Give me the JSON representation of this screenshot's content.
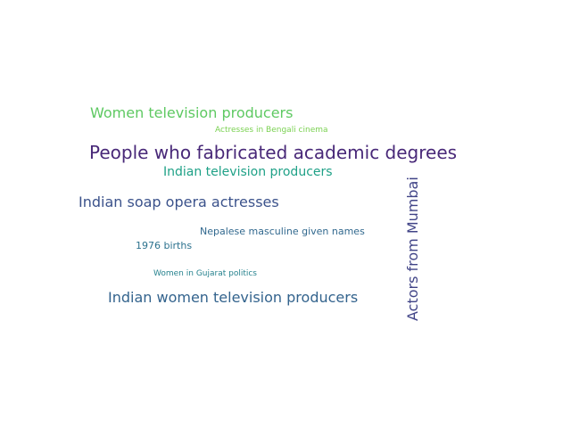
{
  "words": [
    {
      "text": "Women television producers",
      "color": "#5ec962"
    },
    {
      "text": "Actresses in Bengali cinema",
      "color": "#7ad151"
    },
    {
      "text": "People who fabricated academic degrees",
      "color": "#482878"
    },
    {
      "text": "Indian television producers",
      "color": "#1fa187"
    },
    {
      "text": "Indian soap opera actresses",
      "color": "#3b528b"
    },
    {
      "text": "Nepalese masculine given names",
      "color": "#31688e"
    },
    {
      "text": "1976 births",
      "color": "#2c728e"
    },
    {
      "text": "Women in Gujarat politics",
      "color": "#26828e"
    },
    {
      "text": "Indian women television producers",
      "color": "#33638d"
    },
    {
      "text": "Actors from Mumbai",
      "color": "#414487"
    }
  ]
}
